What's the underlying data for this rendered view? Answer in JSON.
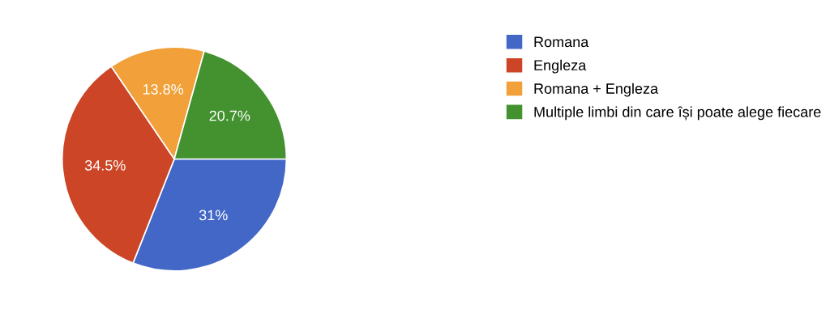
{
  "chart_data": {
    "type": "pie",
    "categories": [
      "Romana",
      "Engleza",
      "Romana + Engleza",
      "Multiple limbi din care își poate alege fiecare"
    ],
    "values": [
      31,
      34.5,
      13.8,
      20.7
    ],
    "colors": [
      "#4367c7",
      "#cc4526",
      "#f1a03a",
      "#43922f"
    ],
    "value_labels": [
      "31%",
      "34.5%",
      "13.8%",
      "20.7%"
    ],
    "legend": "right"
  }
}
